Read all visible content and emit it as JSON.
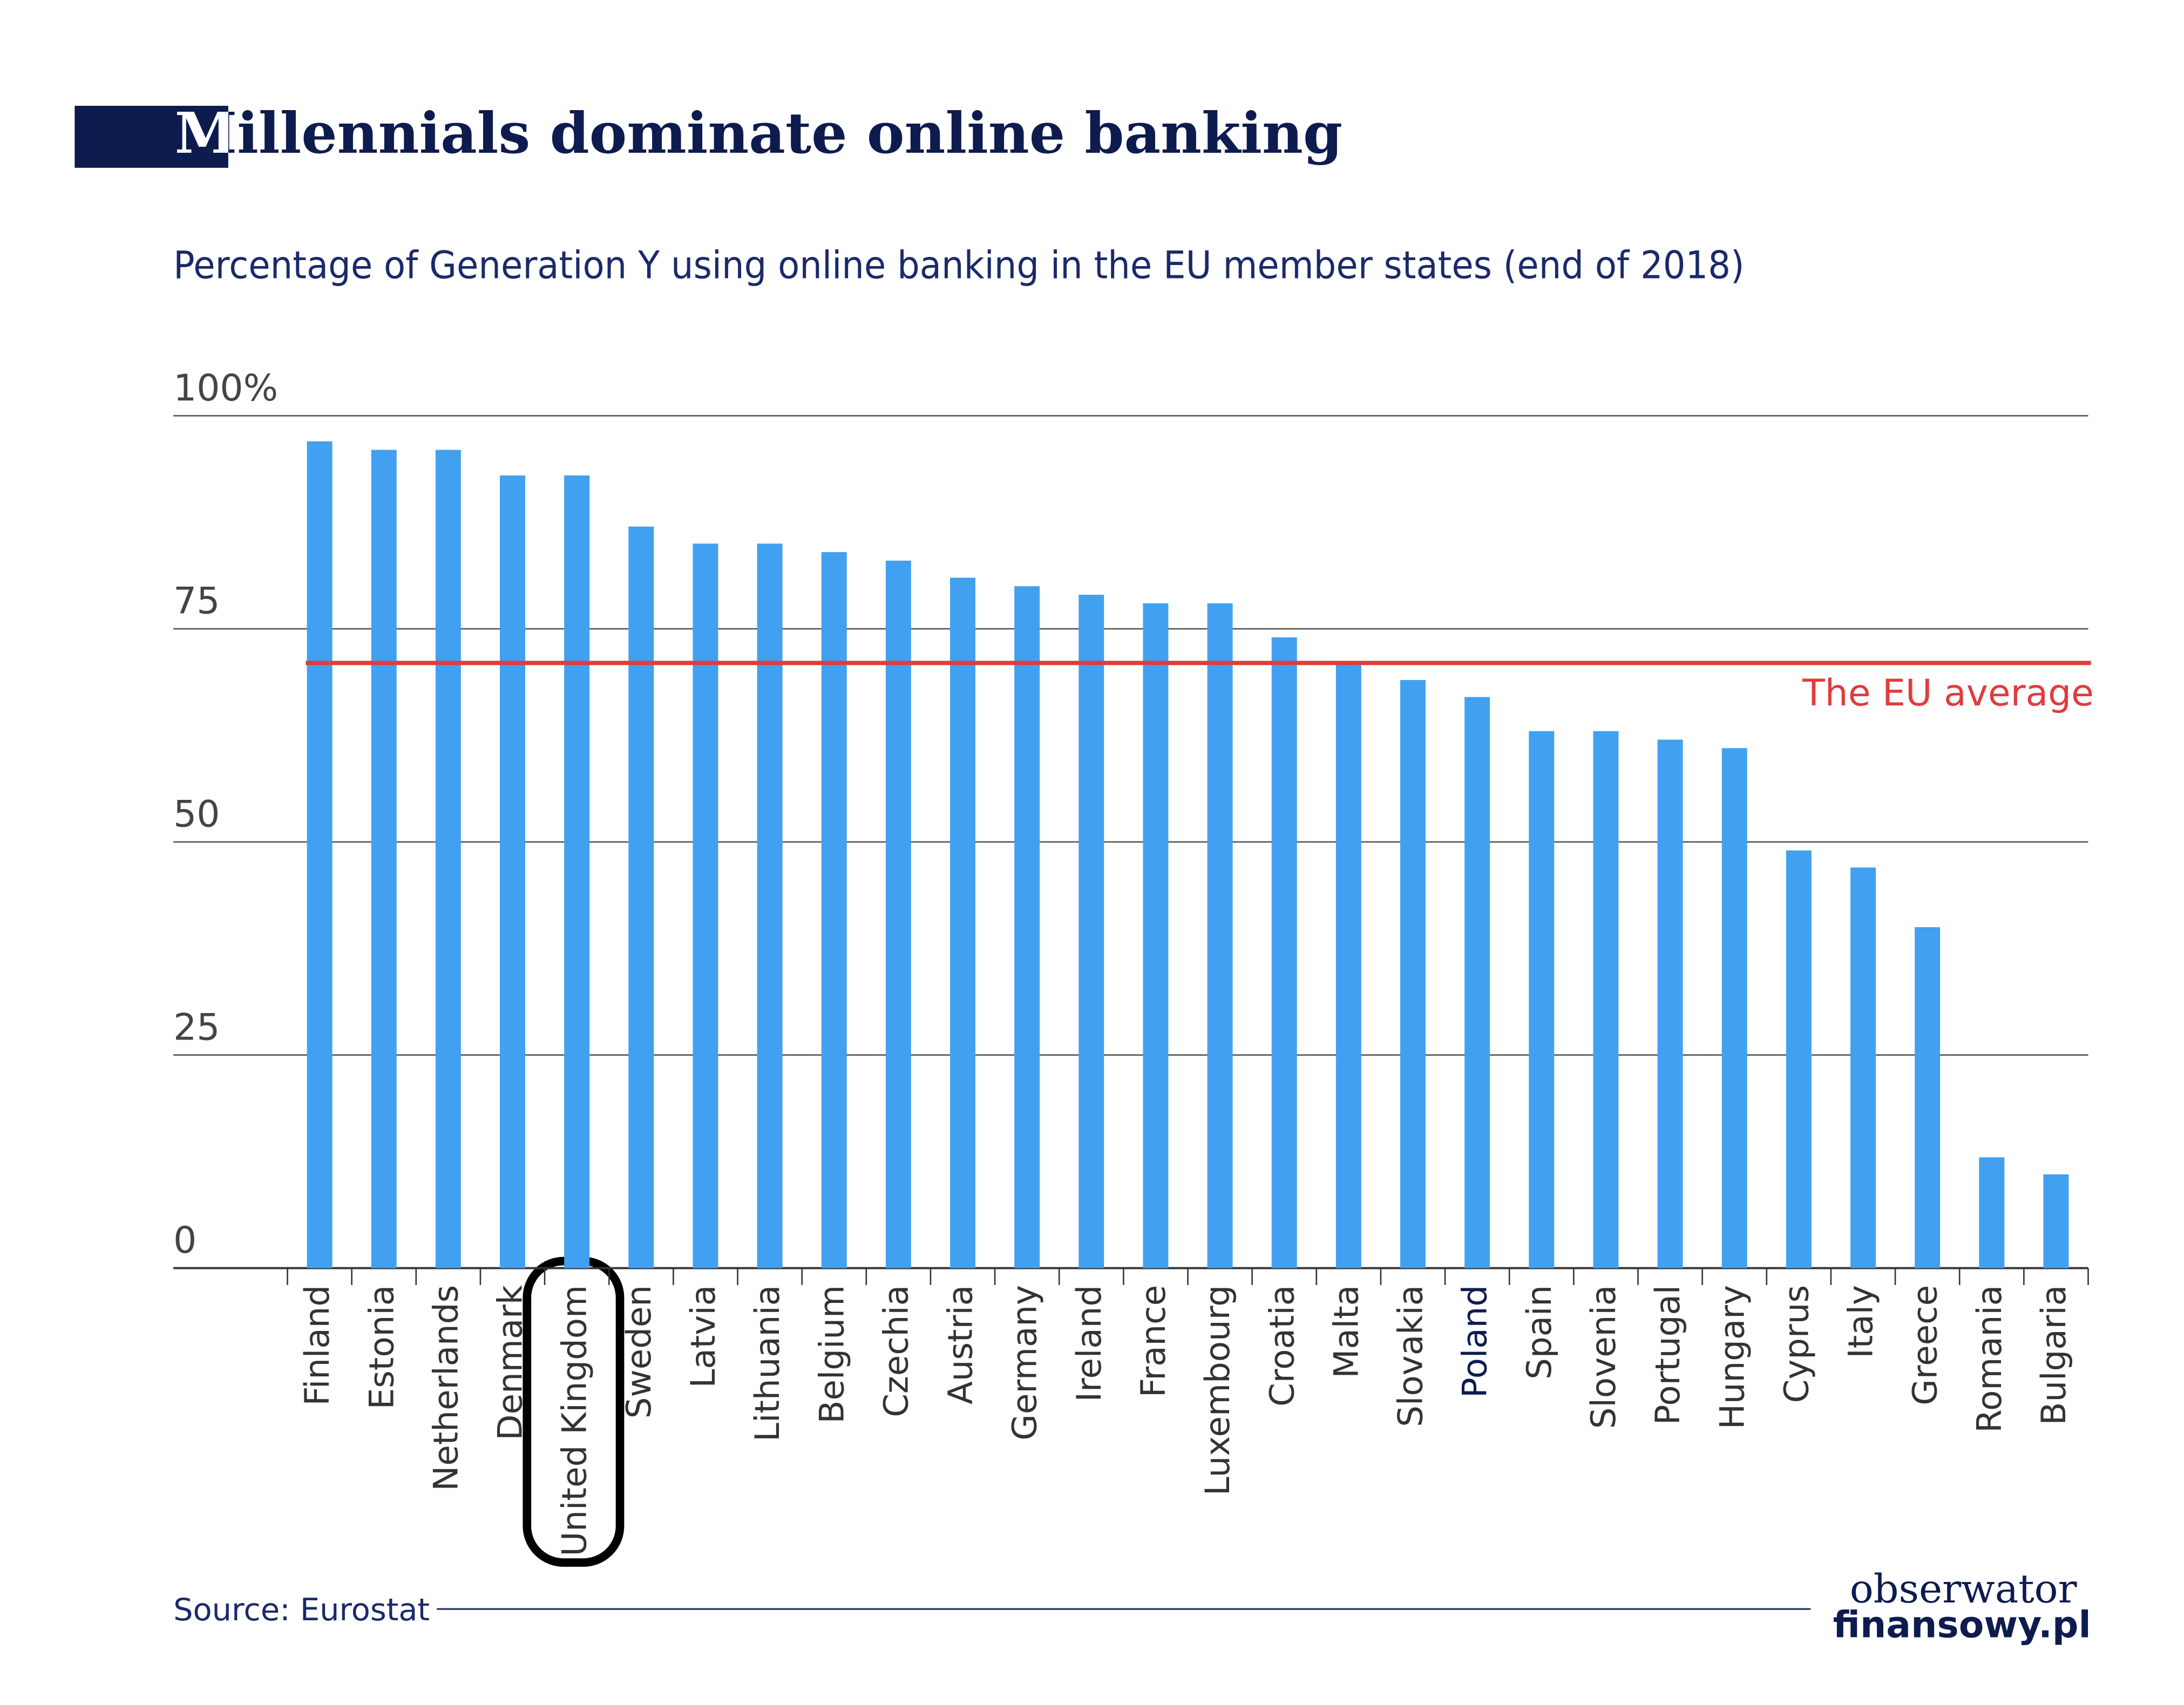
{
  "chart_data": {
    "type": "bar",
    "title": "Millennials dominate online banking",
    "subtitle": "Percentage of Generation Y using online banking in the EU member states (end of 2018)",
    "categories": [
      "Finland",
      "Estonia",
      "Netherlands",
      "Denmark",
      "United Kingdom",
      "Sweden",
      "Latvia",
      "Lithuania",
      "Belgium",
      "Czechia",
      "Austria",
      "Germany",
      "Ireland",
      "France",
      "Luxembourg",
      "Croatia",
      "Malta",
      "Slovakia",
      "Poland",
      "Spain",
      "Slovenia",
      "Portugal",
      "Hungary",
      "Cyprus",
      "Italy",
      "Greece",
      "Romania",
      "Bulgaria"
    ],
    "values": [
      97,
      96,
      96,
      93,
      93,
      87,
      85,
      85,
      84,
      83,
      81,
      80,
      79,
      78,
      78,
      74,
      71,
      69,
      67,
      63,
      63,
      62,
      61,
      49,
      47,
      40,
      13,
      11
    ],
    "color": "#42a0f0",
    "highlight_category": "Poland",
    "highlight_color": "#0d1b4f",
    "ylim": [
      0,
      100
    ],
    "yticks": [
      0,
      25,
      50,
      75,
      {
        "value": 100,
        "label": "100%"
      }
    ],
    "grid": true,
    "reference_line": {
      "label": "The EU average",
      "value": 71,
      "color": "#e03c3c"
    },
    "source": "Source: Eurostat",
    "logo": [
      "obserwator",
      "finansowy.pl"
    ]
  }
}
